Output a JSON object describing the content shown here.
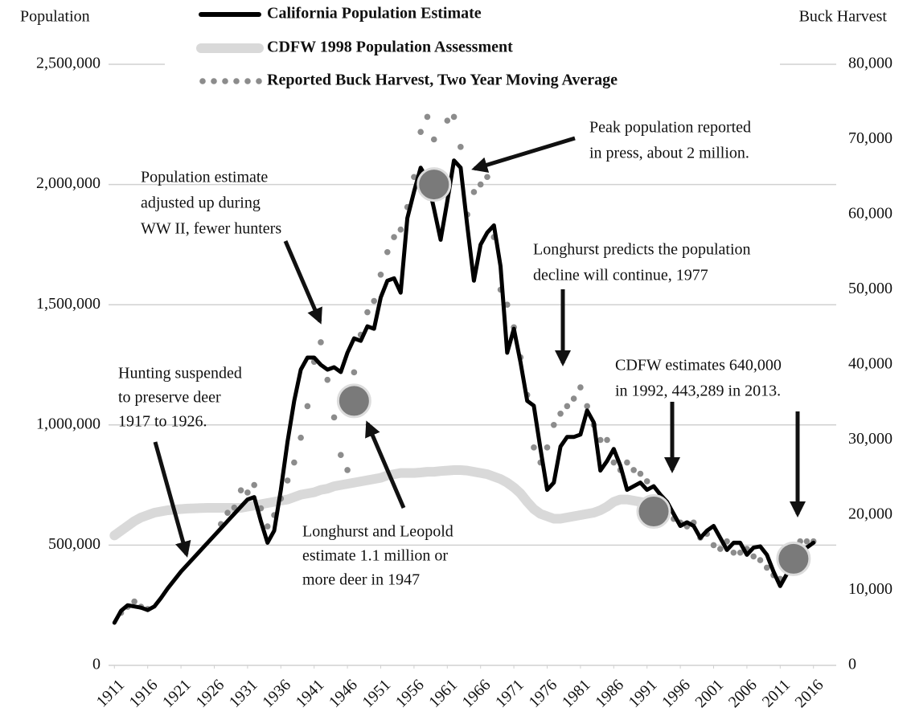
{
  "chart_data": {
    "type": "line",
    "y_label": "Population",
    "y2_label": "Buck Harvest",
    "x": [
      1911,
      1912,
      1913,
      1914,
      1915,
      1916,
      1917,
      1918,
      1919,
      1920,
      1921,
      1922,
      1923,
      1924,
      1925,
      1926,
      1927,
      1928,
      1929,
      1930,
      1931,
      1932,
      1933,
      1934,
      1935,
      1936,
      1937,
      1938,
      1939,
      1940,
      1941,
      1942,
      1943,
      1944,
      1945,
      1946,
      1947,
      1948,
      1949,
      1950,
      1951,
      1952,
      1953,
      1954,
      1955,
      1956,
      1957,
      1958,
      1959,
      1960,
      1961,
      1962,
      1963,
      1964,
      1965,
      1966,
      1967,
      1968,
      1969,
      1970,
      1971,
      1972,
      1973,
      1974,
      1975,
      1976,
      1977,
      1978,
      1979,
      1980,
      1981,
      1982,
      1983,
      1984,
      1985,
      1986,
      1987,
      1988,
      1989,
      1990,
      1991,
      1992,
      1993,
      1994,
      1995,
      1996,
      1997,
      1998,
      1999,
      2000,
      2001,
      2002,
      2003,
      2004,
      2005,
      2006,
      2007,
      2008,
      2009,
      2010,
      2011,
      2012,
      2013,
      2014,
      2015,
      2016
    ],
    "series": [
      {
        "name": "California Population Estimate",
        "color": "#000000",
        "style": "line",
        "values": [
          177000,
          227000,
          250000,
          245000,
          240000,
          230000,
          245000,
          280000,
          320000,
          355000,
          390000,
          420000,
          450000,
          480000,
          510000,
          540000,
          570000,
          600000,
          630000,
          660000,
          690000,
          700000,
          600000,
          510000,
          560000,
          730000,
          930000,
          1100000,
          1230000,
          1280000,
          1280000,
          1250000,
          1230000,
          1240000,
          1220000,
          1300000,
          1360000,
          1350000,
          1410000,
          1400000,
          1530000,
          1600000,
          1610000,
          1550000,
          1860000,
          1970000,
          2070000,
          2020000,
          1900000,
          1770000,
          1930000,
          2100000,
          2070000,
          1830000,
          1600000,
          1750000,
          1800000,
          1830000,
          1660000,
          1300000,
          1400000,
          1260000,
          1100000,
          1080000,
          900000,
          730000,
          760000,
          910000,
          950000,
          950000,
          960000,
          1060000,
          1010000,
          810000,
          850000,
          900000,
          830000,
          730000,
          745000,
          760000,
          730000,
          745000,
          710000,
          680000,
          630000,
          580000,
          595000,
          580000,
          530000,
          560000,
          580000,
          530000,
          480000,
          510000,
          510000,
          460000,
          490000,
          495000,
          460000,
          390000,
          330000,
          380000,
          430000,
          460000,
          490000,
          510000
        ]
      },
      {
        "name": "CDFW 1998 Population Assessment",
        "color": "#d9d9d9",
        "style": "band",
        "values": [
          540000,
          560000,
          580000,
          600000,
          615000,
          625000,
          635000,
          640000,
          645000,
          648000,
          650000,
          652000,
          653000,
          654000,
          655000,
          655000,
          655000,
          655000,
          655000,
          655000,
          660000,
          665000,
          670000,
          675000,
          680000,
          685000,
          690000,
          700000,
          710000,
          715000,
          720000,
          730000,
          735000,
          745000,
          750000,
          755000,
          760000,
          765000,
          770000,
          775000,
          780000,
          790000,
          795000,
          800000,
          800000,
          800000,
          802000,
          805000,
          805000,
          808000,
          810000,
          812000,
          812000,
          810000,
          805000,
          800000,
          795000,
          785000,
          775000,
          760000,
          740000,
          715000,
          680000,
          650000,
          630000,
          620000,
          610000,
          610000,
          615000,
          620000,
          625000,
          630000,
          635000,
          645000,
          660000,
          680000,
          690000,
          690000,
          685000,
          680000,
          675000,
          670000,
          660000,
          null,
          null,
          null,
          null,
          null,
          null,
          null,
          null,
          null,
          null,
          null,
          null,
          null,
          null,
          null,
          null,
          null,
          null,
          null,
          null,
          null,
          null,
          null
        ]
      },
      {
        "name": "Reported Buck Harvest, Two Year Moving Average",
        "color": "#8c8c8c",
        "style": "dots",
        "axis": "y2",
        "values": [
          null,
          7000,
          7800,
          8500,
          7800,
          7500,
          null,
          null,
          null,
          null,
          null,
          null,
          null,
          null,
          null,
          null,
          18800,
          20300,
          21000,
          23300,
          23000,
          24000,
          20900,
          18500,
          20000,
          22200,
          24600,
          27000,
          30300,
          34500,
          40400,
          43000,
          38000,
          33000,
          28000,
          26000,
          39000,
          44000,
          47000,
          48500,
          52000,
          55000,
          57000,
          58000,
          61000,
          65000,
          71000,
          73000,
          70000,
          65000,
          72500,
          73000,
          69000,
          60000,
          63000,
          64000,
          65000,
          57000,
          50000,
          48000,
          45000,
          41000,
          36000,
          29000,
          27000,
          29000,
          32000,
          33500,
          34500,
          35500,
          37000,
          34500,
          32000,
          30000,
          30000,
          27000,
          26000,
          27000,
          26000,
          25500,
          24500,
          22000,
          21000,
          21000,
          19500,
          19000,
          18500,
          19000,
          17000,
          17500,
          16000,
          15500,
          16500,
          15000,
          15000,
          15500,
          14500,
          14000,
          13000,
          12000,
          11500,
          13000,
          14500,
          16500,
          16500,
          16500
        ]
      }
    ],
    "highlights": [
      {
        "x": 1959,
        "value": 2000000
      },
      {
        "x": 1947,
        "value": 1100000
      },
      {
        "x": 1992,
        "value": 640000
      },
      {
        "x": 2013,
        "value": 443289
      }
    ],
    "annotations": [
      {
        "lines": [
          "Population estimate",
          "adjusted up during",
          "WW II, fewer hunters"
        ]
      },
      {
        "lines": [
          "Hunting suspended",
          "to preserve deer",
          "1917 to 1926."
        ]
      },
      {
        "lines": [
          "Peak population reported",
          "in press,  about 2 million."
        ]
      },
      {
        "lines": [
          "Longhurst predicts the population",
          "decline will continue, 1977"
        ]
      },
      {
        "lines": [
          "CDFW estimates 640,000",
          " in 1992, 443,289 in 2013."
        ]
      },
      {
        "lines": [
          "Longhurst and Leopold",
          "estimate 1.1 million or",
          "more deer in 1947"
        ]
      }
    ],
    "xlim": [
      1910,
      2017
    ],
    "xticks": [
      1911,
      1916,
      1921,
      1926,
      1931,
      1936,
      1941,
      1946,
      1951,
      1956,
      1961,
      1966,
      1971,
      1976,
      1981,
      1986,
      1991,
      1996,
      2001,
      2006,
      2011,
      2016
    ],
    "ylim": [
      0,
      2500000
    ],
    "yticks": [
      0,
      {
        "value": 500000,
        "label": "500,000"
      },
      {
        "value": 1000000,
        "label": "1,000,000"
      },
      {
        "value": 1500000,
        "label": "1,500,000"
      },
      {
        "value": 2000000,
        "label": "2,000,000"
      },
      {
        "value": 2500000,
        "label": "2,500,000"
      }
    ],
    "y2lim": [
      0,
      80000
    ],
    "y2ticks": [
      0,
      {
        "value": 10000,
        "label": "10,000"
      },
      {
        "value": 20000,
        "label": "20,000"
      },
      {
        "value": 30000,
        "label": "30,000"
      },
      {
        "value": 40000,
        "label": "40,000"
      },
      {
        "value": 50000,
        "label": "50,000"
      },
      {
        "value": 60000,
        "label": "60,000"
      },
      {
        "value": 70000,
        "label": "70,000"
      },
      {
        "value": 80000,
        "label": "80,000"
      }
    ],
    "grid": true
  }
}
